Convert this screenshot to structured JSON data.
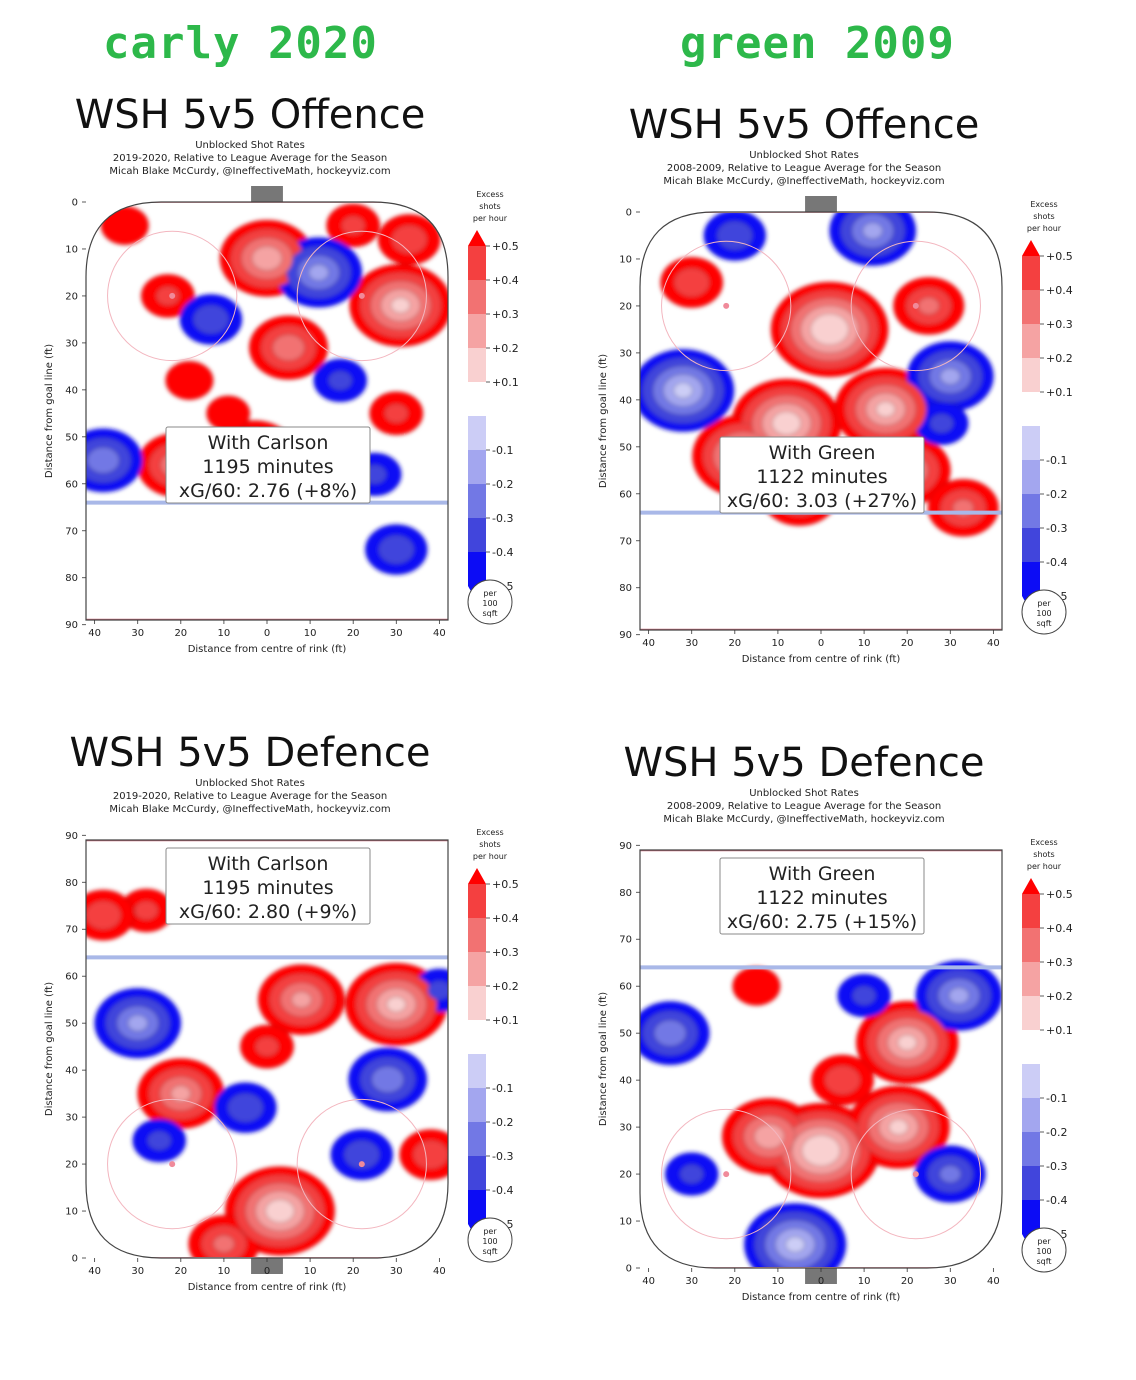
{
  "headers": {
    "left": "carly 2020",
    "right": "green 2009"
  },
  "colorbar": {
    "title_lines": [
      "Excess",
      "shots",
      "per hour"
    ],
    "labels": [
      "+0.5",
      "+0.4",
      "+0.3",
      "+0.2",
      "+0.1",
      "-0.1",
      "-0.2",
      "-0.3",
      "-0.4",
      "-0.5"
    ],
    "colors": [
      "#ff0000",
      "#f44040",
      "#f27272",
      "#f5a3a3",
      "#f9d0d0",
      "#ffffff",
      "#cccdf6",
      "#a3a6ef",
      "#7278e5",
      "#4145dc",
      "#0c0cf5"
    ],
    "unit_lines": [
      "per",
      "100",
      "sqft"
    ]
  },
  "charts": [
    {
      "id": "carly-offence",
      "title": "WSH 5v5 Offence",
      "subtitle": [
        "Unblocked Shot Rates",
        "2019-2020, Relative to League Average for the Season",
        "Micah Blake McCurdy, @IneffectiveMath, hockeyviz.com"
      ],
      "info": [
        "With Carlson",
        "1195 minutes",
        "xG/60: 2.76 (+8%)"
      ],
      "xlabel": "Distance from centre of rink (ft)",
      "ylabel": "Distance from goal line (ft)",
      "xticks": [
        "40",
        "30",
        "20",
        "10",
        "0",
        "10",
        "20",
        "30",
        "40"
      ],
      "yticks": [
        "0",
        "10",
        "20",
        "30",
        "40",
        "50",
        "60",
        "70",
        "80",
        "90"
      ]
    },
    {
      "id": "green-offence",
      "title": "WSH 5v5 Offence",
      "subtitle": [
        "Unblocked Shot Rates",
        "2008-2009, Relative to League Average for the Season",
        "Micah Blake McCurdy, @IneffectiveMath, hockeyviz.com"
      ],
      "info": [
        "With Green",
        "1122 minutes",
        "xG/60: 3.03 (+27%)"
      ],
      "xlabel": "Distance from centre of rink (ft)",
      "ylabel": "Distance from goal line (ft)",
      "xticks": [
        "40",
        "30",
        "20",
        "10",
        "0",
        "10",
        "20",
        "30",
        "40"
      ],
      "yticks": [
        "0",
        "10",
        "20",
        "30",
        "40",
        "50",
        "60",
        "70",
        "80",
        "90"
      ]
    },
    {
      "id": "carly-defence",
      "title": "WSH 5v5 Defence",
      "subtitle": [
        "Unblocked Shot Rates",
        "2019-2020, Relative to League Average for the Season",
        "Micah Blake McCurdy, @IneffectiveMath, hockeyviz.com"
      ],
      "info": [
        "With Carlson",
        "1195 minutes",
        "xG/60: 2.80 (+9%)"
      ],
      "xlabel": "Distance from centre of rink (ft)",
      "ylabel": "Distance from goal line (ft)",
      "xticks": [
        "40",
        "30",
        "20",
        "10",
        "0",
        "10",
        "20",
        "30",
        "40"
      ],
      "yticks": [
        "90",
        "80",
        "70",
        "60",
        "50",
        "40",
        "30",
        "20",
        "10",
        "0"
      ]
    },
    {
      "id": "green-defence",
      "title": "WSH 5v5 Defence",
      "subtitle": [
        "Unblocked Shot Rates",
        "2008-2009, Relative to League Average for the Season",
        "Micah Blake McCurdy, @IneffectiveMath, hockeyviz.com"
      ],
      "info": [
        "With Green",
        "1122 minutes",
        "xG/60: 2.75 (+15%)"
      ],
      "xlabel": "Distance from centre of rink (ft)",
      "ylabel": "Distance from goal line (ft)",
      "xticks": [
        "40",
        "30",
        "20",
        "10",
        "0",
        "10",
        "20",
        "30",
        "40"
      ],
      "yticks": [
        "90",
        "80",
        "70",
        "60",
        "50",
        "40",
        "30",
        "20",
        "10",
        "0"
      ]
    }
  ],
  "chart_data": [
    {
      "type": "heatmap",
      "title": "WSH 5v5 Offence",
      "xlabel": "Distance from centre of rink (ft)",
      "ylabel": "Distance from goal line (ft)",
      "xlim": [
        -42,
        42
      ],
      "ylim": [
        0,
        89
      ],
      "zlim": [
        -0.5,
        0.5
      ],
      "blobs": [
        {
          "x": 0,
          "y": 12,
          "v": 0.4
        },
        {
          "x": 31,
          "y": 22,
          "v": 0.45
        },
        {
          "x": 5,
          "y": 31,
          "v": 0.3
        },
        {
          "x": -3,
          "y": 54,
          "v": 0.35
        },
        {
          "x": -21,
          "y": 56,
          "v": 0.3
        },
        {
          "x": -23,
          "y": 20,
          "v": 0.15
        },
        {
          "x": -18,
          "y": 38,
          "v": 0.12
        },
        {
          "x": 30,
          "y": 45,
          "v": 0.15
        },
        {
          "x": 20,
          "y": 5,
          "v": 0.15
        },
        {
          "x": -33,
          "y": 5,
          "v": 0.12
        },
        {
          "x": -9,
          "y": 45,
          "v": 0.1
        },
        {
          "x": 33,
          "y": 8,
          "v": 0.2
        },
        {
          "x": 12,
          "y": 15,
          "v": -0.35
        },
        {
          "x": -13,
          "y": 25,
          "v": -0.2
        },
        {
          "x": 17,
          "y": 38,
          "v": -0.15
        },
        {
          "x": -38,
          "y": 55,
          "v": -0.3
        },
        {
          "x": 30,
          "y": 74,
          "v": -0.2
        },
        {
          "x": 25,
          "y": 58,
          "v": -0.15
        }
      ]
    },
    {
      "type": "heatmap",
      "title": "WSH 5v5 Offence",
      "xlabel": "Distance from centre of rink (ft)",
      "ylabel": "Distance from goal line (ft)",
      "xlim": [
        -42,
        42
      ],
      "ylim": [
        0,
        89
      ],
      "zlim": [
        -0.5,
        0.5
      ],
      "blobs": [
        {
          "x": 2,
          "y": 25,
          "v": 0.55
        },
        {
          "x": -8,
          "y": 45,
          "v": 0.5
        },
        {
          "x": 15,
          "y": 42,
          "v": 0.45
        },
        {
          "x": -18,
          "y": 52,
          "v": 0.45
        },
        {
          "x": 20,
          "y": 55,
          "v": 0.35
        },
        {
          "x": -5,
          "y": 60,
          "v": 0.3
        },
        {
          "x": 25,
          "y": 20,
          "v": 0.25
        },
        {
          "x": -30,
          "y": 15,
          "v": 0.2
        },
        {
          "x": 33,
          "y": 63,
          "v": 0.25
        },
        {
          "x": -32,
          "y": 38,
          "v": -0.45
        },
        {
          "x": 30,
          "y": 35,
          "v": -0.35
        },
        {
          "x": 12,
          "y": 4,
          "v": -0.35
        },
        {
          "x": -20,
          "y": 5,
          "v": -0.2
        },
        {
          "x": 28,
          "y": 45,
          "v": -0.15
        }
      ]
    },
    {
      "type": "heatmap",
      "title": "WSH 5v5 Defence",
      "xlabel": "Distance from centre of rink (ft)",
      "ylabel": "Distance from goal line (ft)",
      "xlim": [
        -42,
        42
      ],
      "ylim": [
        0,
        89
      ],
      "zlim": [
        -0.5,
        0.5
      ],
      "blobs": [
        {
          "x": 3,
          "y": 10,
          "v": 0.5
        },
        {
          "x": -20,
          "y": 35,
          "v": 0.35
        },
        {
          "x": 30,
          "y": 54,
          "v": 0.45
        },
        {
          "x": 8,
          "y": 55,
          "v": 0.35
        },
        {
          "x": -28,
          "y": 74,
          "v": 0.15
        },
        {
          "x": -38,
          "y": 73,
          "v": 0.2
        },
        {
          "x": -10,
          "y": 3,
          "v": 0.25
        },
        {
          "x": 38,
          "y": 22,
          "v": 0.2
        },
        {
          "x": 0,
          "y": 45,
          "v": 0.15
        },
        {
          "x": -30,
          "y": 50,
          "v": -0.35
        },
        {
          "x": 28,
          "y": 38,
          "v": -0.3
        },
        {
          "x": -25,
          "y": 25,
          "v": -0.15
        },
        {
          "x": -5,
          "y": 32,
          "v": -0.2
        },
        {
          "x": 22,
          "y": 22,
          "v": -0.2
        },
        {
          "x": 40,
          "y": 57,
          "v": -0.15
        }
      ]
    },
    {
      "type": "heatmap",
      "title": "WSH 5v5 Defence",
      "xlabel": "Distance from centre of rink (ft)",
      "ylabel": "Distance from goal line (ft)",
      "xlim": [
        -42,
        42
      ],
      "ylim": [
        0,
        89
      ],
      "zlim": [
        -0.5,
        0.5
      ],
      "blobs": [
        {
          "x": 0,
          "y": 25,
          "v": 0.55
        },
        {
          "x": 18,
          "y": 30,
          "v": 0.45
        },
        {
          "x": -12,
          "y": 28,
          "v": 0.4
        },
        {
          "x": 20,
          "y": 48,
          "v": 0.45
        },
        {
          "x": -15,
          "y": 60,
          "v": 0.12
        },
        {
          "x": 5,
          "y": 40,
          "v": 0.2
        },
        {
          "x": -35,
          "y": 50,
          "v": -0.3
        },
        {
          "x": 32,
          "y": 58,
          "v": -0.35
        },
        {
          "x": -6,
          "y": 5,
          "v": -0.45
        },
        {
          "x": 30,
          "y": 20,
          "v": -0.25
        },
        {
          "x": -30,
          "y": 20,
          "v": -0.15
        },
        {
          "x": 10,
          "y": 58,
          "v": -0.15
        }
      ]
    }
  ]
}
